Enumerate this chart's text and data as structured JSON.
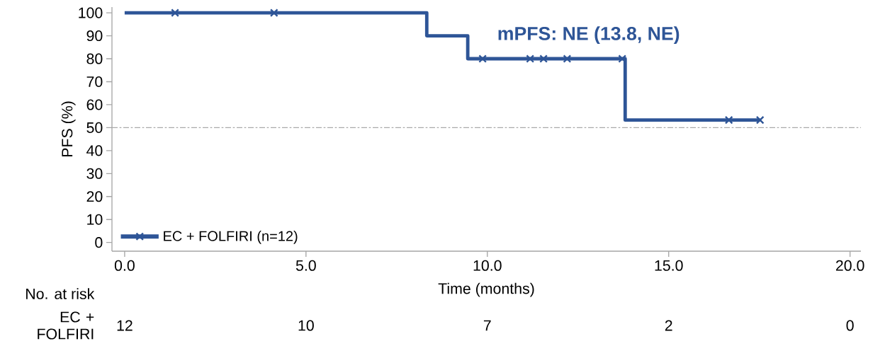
{
  "chart_data": {
    "type": "step",
    "xlabel": "Time (months)",
    "ylabel": "PFS (%)",
    "series": [
      {
        "name": "EC + FOLFIRI (n=12)",
        "color": "#2e5597",
        "x": [
          0,
          8.33,
          9.46,
          13.8,
          17.52
        ],
        "values": [
          100,
          90,
          80,
          53.3,
          53.3
        ]
      },
      {
        "type": "scatter",
        "color": "#2e5597",
        "marker": "cross",
        "x": [
          1.39,
          4.12,
          9.87,
          11.18,
          11.55,
          12.2,
          13.72,
          16.66,
          17.52
        ],
        "values": [
          100,
          100,
          80,
          80,
          80,
          80,
          80,
          53.3,
          53.3
        ]
      }
    ],
    "xlim": [
      -0.35,
      20.3
    ],
    "xticks": [
      {
        "value": 0,
        "label": "0.0"
      },
      {
        "value": 5,
        "label": "5.0"
      },
      {
        "value": 10,
        "label": "10.0"
      },
      {
        "value": 15,
        "label": "15.0"
      },
      {
        "value": 20,
        "label": "20.0"
      }
    ],
    "ylim": [
      -3.8,
      102.5
    ],
    "yticks": [
      0,
      10,
      20,
      30,
      40,
      50,
      60,
      70,
      80,
      90,
      100
    ],
    "ref_lines": [
      {
        "axis": "y",
        "value": 50,
        "color": "#aaaaaa",
        "line_style": "dashed"
      }
    ],
    "legend": "bottom left",
    "annotations": [
      "mPFS: NE (13.8, NE)",
      "No. at risk",
      "EC + FOLFIRI",
      "12",
      "10",
      "7",
      "2",
      "0"
    ]
  }
}
